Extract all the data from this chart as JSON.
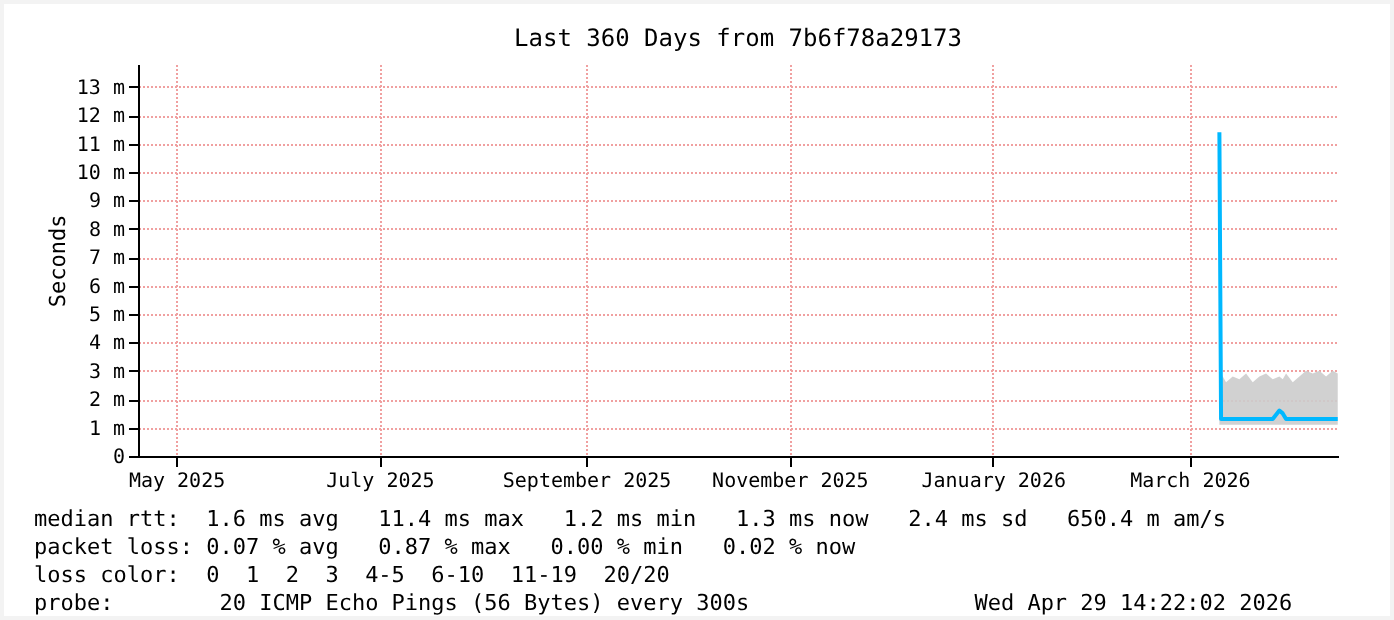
{
  "chart_data": {
    "type": "line",
    "title": "Last 360 Days from 7b6f78a29173",
    "ylabel": "Seconds",
    "xlim": [
      "2025-05-04T14:00",
      "2026-04-29T14:00"
    ],
    "xticks": [
      {
        "value": "2025-05-16",
        "label": "May 2025"
      },
      {
        "value": "2025-07-16",
        "label": "July 2025"
      },
      {
        "value": "2025-09-16",
        "label": "September 2025"
      },
      {
        "value": "2025-11-16",
        "label": "November 2025"
      },
      {
        "value": "2026-01-16",
        "label": "January 2026"
      },
      {
        "value": "2026-03-16",
        "label": "March 2026"
      }
    ],
    "ylim": [
      0,
      13.8
    ],
    "yticks": [
      0,
      {
        "value": 1,
        "label": "1 m"
      },
      {
        "value": 2,
        "label": "2 m"
      },
      {
        "value": 3,
        "label": "3 m"
      },
      {
        "value": 4,
        "label": "4 m"
      },
      {
        "value": 5,
        "label": "5 m"
      },
      {
        "value": 6,
        "label": "6 m"
      },
      {
        "value": 7,
        "label": "7 m"
      },
      {
        "value": 8,
        "label": "8 m"
      },
      {
        "value": 9,
        "label": "9 m"
      },
      {
        "value": 10,
        "label": "10 m"
      },
      {
        "value": 11,
        "label": "11 m"
      },
      {
        "value": 12,
        "label": "12 m"
      },
      {
        "value": 13,
        "label": "13 m"
      }
    ],
    "grid": true,
    "series": [
      {
        "color": "#00b8ff",
        "x": [
          "2026-03-25T00:00",
          "2026-03-25T12:00",
          "2026-03-27",
          "2026-03-29",
          "2026-03-31",
          "2026-04-02",
          "2026-04-04",
          "2026-04-06",
          "2026-04-08",
          "2026-04-10",
          "2026-04-12",
          "2026-04-13",
          "2026-04-14",
          "2026-04-16",
          "2026-04-18",
          "2026-04-20",
          "2026-04-22",
          "2026-04-24",
          "2026-04-26",
          "2026-04-28",
          "2026-04-29T12:00"
        ],
        "values": [
          11.4,
          1.3,
          1.3,
          1.3,
          1.3,
          1.3,
          1.3,
          1.3,
          1.3,
          1.3,
          1.6,
          1.5,
          1.3,
          1.3,
          1.3,
          1.3,
          1.3,
          1.3,
          1.3,
          1.3,
          1.3
        ],
        "lower": [
          1.1,
          1.1,
          1.1,
          1.1,
          1.1,
          1.1,
          1.1,
          1.1,
          1.1,
          1.1,
          1.1,
          1.1,
          1.1,
          1.1,
          1.1,
          1.1,
          1.1,
          1.1,
          1.1,
          1.1,
          1.1
        ],
        "upper": [
          11.4,
          2.9,
          2.6,
          2.8,
          2.7,
          2.9,
          2.6,
          2.8,
          2.9,
          2.7,
          2.8,
          2.7,
          2.9,
          2.6,
          2.8,
          3.0,
          2.9,
          3.0,
          2.8,
          3.0,
          2.9
        ]
      }
    ],
    "annotations": [
      "median rtt:  1.6 ms avg   11.4 ms max   1.2 ms min   1.3 ms now   2.4 ms sd   650.4 m am/s",
      "packet loss: 0.07 % avg   0.87 % max   0.00 % min   0.02 % now",
      "loss color:  0  1  2  3  4-5  6-10  11-19  20/20",
      "probe:        20 ICMP Echo Pings (56 Bytes) every 300s                 Wed Apr 29 14:22:02 2026"
    ]
  }
}
